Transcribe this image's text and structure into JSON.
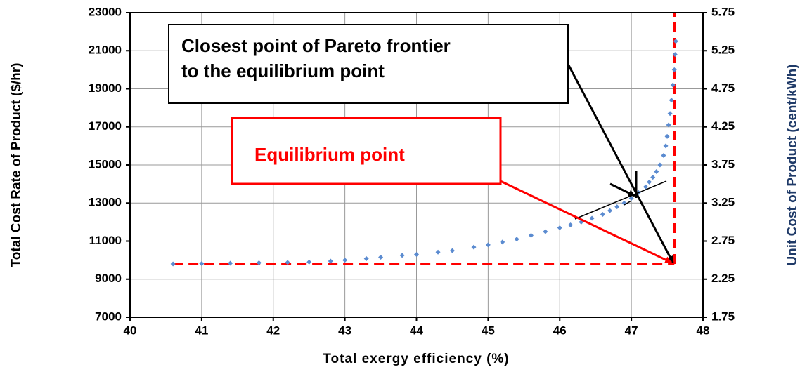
{
  "chart_data": {
    "type": "scatter",
    "x_label": "Total exergy efficiency (%)",
    "y_label": "Total Cost Rate of Product ($/hr)",
    "y2_label": "Unit Cost of Product (cent/kWh)",
    "color": "#5b8bd0",
    "x": [
      40.6,
      41.0,
      41.4,
      41.8,
      42.2,
      42.5,
      42.8,
      43.0,
      43.3,
      43.5,
      43.8,
      44.0,
      44.3,
      44.5,
      44.8,
      45.0,
      45.2,
      45.4,
      45.6,
      45.8,
      46.0,
      46.15,
      46.3,
      46.45,
      46.6,
      46.7,
      46.8,
      46.9,
      47.0,
      47.1,
      47.2,
      47.25,
      47.3,
      47.35,
      47.4,
      47.45,
      47.48,
      47.5,
      47.52,
      47.54,
      47.56,
      47.58,
      47.6,
      47.61,
      47.62
    ],
    "values": [
      9800,
      9820,
      9840,
      9860,
      9880,
      9900,
      9950,
      10000,
      10080,
      10150,
      10250,
      10300,
      10420,
      10500,
      10680,
      10800,
      10950,
      11100,
      11300,
      11500,
      11700,
      11850,
      12000,
      12200,
      12400,
      12600,
      12800,
      13000,
      13250,
      13550,
      13850,
      14100,
      14350,
      14650,
      15000,
      15500,
      16000,
      16500,
      17100,
      17700,
      18400,
      19200,
      20000,
      20800,
      21500
    ],
    "xlim": [
      40,
      48
    ],
    "xticks": [
      40,
      41,
      42,
      43,
      44,
      45,
      46,
      47,
      48
    ],
    "ylim": [
      7000,
      23000
    ],
    "yticks": [
      7000,
      9000,
      11000,
      13000,
      15000,
      17000,
      19000,
      21000,
      23000
    ],
    "y2lim": [
      1.75,
      5.75
    ],
    "y2ticks": [
      1.75,
      2.25,
      2.75,
      3.25,
      3.75,
      4.25,
      4.75,
      5.25,
      5.75
    ],
    "grid": true,
    "equilibrium_point": {
      "x": 47.6,
      "y": 9800,
      "color": "#ff0000"
    },
    "annotations": [
      {
        "lines": [
          "Closest point of Pareto frontier",
          "to the equilibrium point"
        ],
        "color": "#000000"
      },
      {
        "lines": [
          "Equilibrium point"
        ],
        "color": "#ff0000"
      }
    ]
  }
}
